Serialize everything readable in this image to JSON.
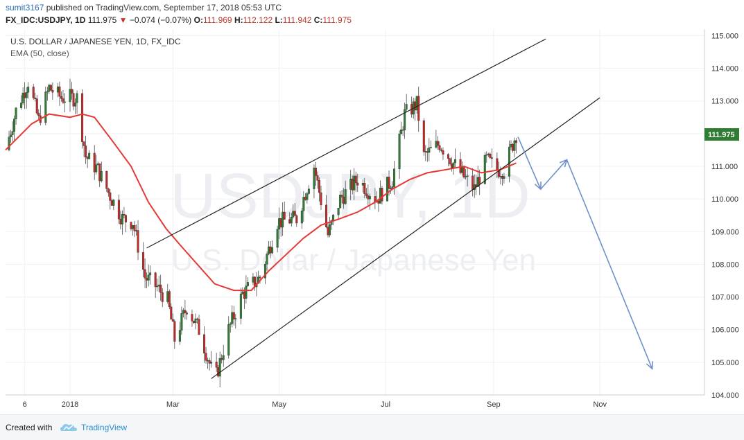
{
  "header": {
    "user": "sumit3167",
    "published": "published on TradingView.com, September 17, 2018 05:53 UTC",
    "symbol": "FX_IDC:USDJPY, 1D",
    "last": "111.975",
    "change": "−0.074 (−0.07%)",
    "o_label": "O:",
    "o_value": "111.969",
    "h_label": "H:",
    "h_value": "112.122",
    "l_label": "L:",
    "l_value": "111.942",
    "c_label": "C:",
    "c_value": "111.975"
  },
  "legend": {
    "title": "U.S. DOLLAR / JAPANESE YEN, 1D, FX_IDC",
    "indicator": "EMA (50, close)"
  },
  "watermark": {
    "line1": "USDJPY, 1D",
    "line2": "U.S. Dollar / Japanese Yen"
  },
  "footer": {
    "created_with": "Created with",
    "brand": "TradingView"
  },
  "colors": {
    "up": "#2e7d32",
    "down": "#c62828",
    "ema": "#e53935",
    "channel": "#222222",
    "arrow": "#7090c8",
    "grid": "#eef0f4",
    "price_tag": "#2e7d32"
  },
  "chart_data": {
    "type": "candlestick",
    "y_axis": {
      "min": 104.0,
      "max": 115.2,
      "ticks": [
        "115.000",
        "114.000",
        "113.000",
        "112.000",
        "111.000",
        "110.000",
        "109.000",
        "108.000",
        "107.000",
        "106.000",
        "105.000",
        "104.000"
      ]
    },
    "x_axis": {
      "start": "2017-11-25",
      "end": "2018-12-31",
      "ticks": [
        {
          "date": "2017-12-06",
          "label": "6"
        },
        {
          "date": "2018-01-01",
          "label": "2018"
        },
        {
          "date": "2018-03-01",
          "label": "Mar"
        },
        {
          "date": "2018-05-01",
          "label": "May"
        },
        {
          "date": "2018-07-01",
          "label": "Jul"
        },
        {
          "date": "2018-09-01",
          "label": "Sep"
        },
        {
          "date": "2018-11-01",
          "label": "Nov"
        }
      ]
    },
    "last_price": {
      "value": 111.975,
      "label": "111.975"
    },
    "close_path": [
      [
        "2017-11-25",
        111.5
      ],
      [
        "2017-12-01",
        112.7
      ],
      [
        "2017-12-08",
        113.6
      ],
      [
        "2017-12-14",
        112.4
      ],
      [
        "2017-12-20",
        113.4
      ],
      [
        "2017-12-27",
        113.1
      ],
      [
        "2018-01-05",
        113.1
      ],
      [
        "2018-01-10",
        111.3
      ],
      [
        "2018-01-17",
        110.9
      ],
      [
        "2018-01-23",
        110.2
      ],
      [
        "2018-01-31",
        109.4
      ],
      [
        "2018-02-06",
        109.3
      ],
      [
        "2018-02-13",
        107.6
      ],
      [
        "2018-02-20",
        107.3
      ],
      [
        "2018-02-26",
        106.9
      ],
      [
        "2018-03-02",
        105.7
      ],
      [
        "2018-03-09",
        106.7
      ],
      [
        "2018-03-16",
        106.0
      ],
      [
        "2018-03-23",
        104.8
      ],
      [
        "2018-03-26",
        104.6
      ],
      [
        "2018-04-02",
        106.0
      ],
      [
        "2018-04-10",
        107.1
      ],
      [
        "2018-04-20",
        107.6
      ],
      [
        "2018-04-30",
        109.3
      ],
      [
        "2018-05-11",
        109.4
      ],
      [
        "2018-05-21",
        111.0
      ],
      [
        "2018-05-29",
        108.9
      ],
      [
        "2018-06-05",
        110.0
      ],
      [
        "2018-06-15",
        110.6
      ],
      [
        "2018-06-26",
        110.0
      ],
      [
        "2018-07-05",
        110.6
      ],
      [
        "2018-07-12",
        112.6
      ],
      [
        "2018-07-19",
        112.9
      ],
      [
        "2018-07-23",
        111.3
      ],
      [
        "2018-08-01",
        111.7
      ],
      [
        "2018-08-13",
        110.8
      ],
      [
        "2018-08-21",
        110.3
      ],
      [
        "2018-08-28",
        111.2
      ],
      [
        "2018-09-03",
        110.9
      ],
      [
        "2018-09-07",
        110.9
      ],
      [
        "2018-09-14",
        112.0
      ]
    ],
    "ema_50": [
      [
        "2017-11-25",
        111.5
      ],
      [
        "2017-12-10",
        112.3
      ],
      [
        "2017-12-20",
        112.6
      ],
      [
        "2018-01-01",
        112.5
      ],
      [
        "2018-01-08",
        112.6
      ],
      [
        "2018-01-15",
        112.5
      ],
      [
        "2018-01-25",
        111.8
      ],
      [
        "2018-02-05",
        111.0
      ],
      [
        "2018-02-15",
        109.9
      ],
      [
        "2018-02-25",
        109.1
      ],
      [
        "2018-03-05",
        108.6
      ],
      [
        "2018-03-15",
        108.0
      ],
      [
        "2018-03-25",
        107.4
      ],
      [
        "2018-04-05",
        107.2
      ],
      [
        "2018-04-15",
        107.2
      ],
      [
        "2018-04-25",
        107.8
      ],
      [
        "2018-05-05",
        108.3
      ],
      [
        "2018-05-15",
        108.8
      ],
      [
        "2018-05-25",
        109.2
      ],
      [
        "2018-06-05",
        109.4
      ],
      [
        "2018-06-15",
        109.6
      ],
      [
        "2018-06-25",
        109.9
      ],
      [
        "2018-07-05",
        110.3
      ],
      [
        "2018-07-15",
        110.6
      ],
      [
        "2018-07-25",
        110.8
      ],
      [
        "2018-08-05",
        110.9
      ],
      [
        "2018-08-15",
        111.0
      ],
      [
        "2018-08-25",
        110.8
      ],
      [
        "2018-09-05",
        110.9
      ],
      [
        "2018-09-14",
        111.1
      ]
    ],
    "channel_upper": [
      [
        "2018-02-14",
        108.5
      ],
      [
        "2018-10-01",
        114.9
      ]
    ],
    "channel_lower": [
      [
        "2018-03-23",
        104.5
      ],
      [
        "2018-11-01",
        113.1
      ]
    ],
    "projection": [
      [
        "2018-09-15",
        111.9
      ],
      [
        "2018-09-28",
        110.3
      ],
      [
        "2018-10-13",
        111.2
      ],
      [
        "2018-12-01",
        104.8
      ]
    ]
  }
}
